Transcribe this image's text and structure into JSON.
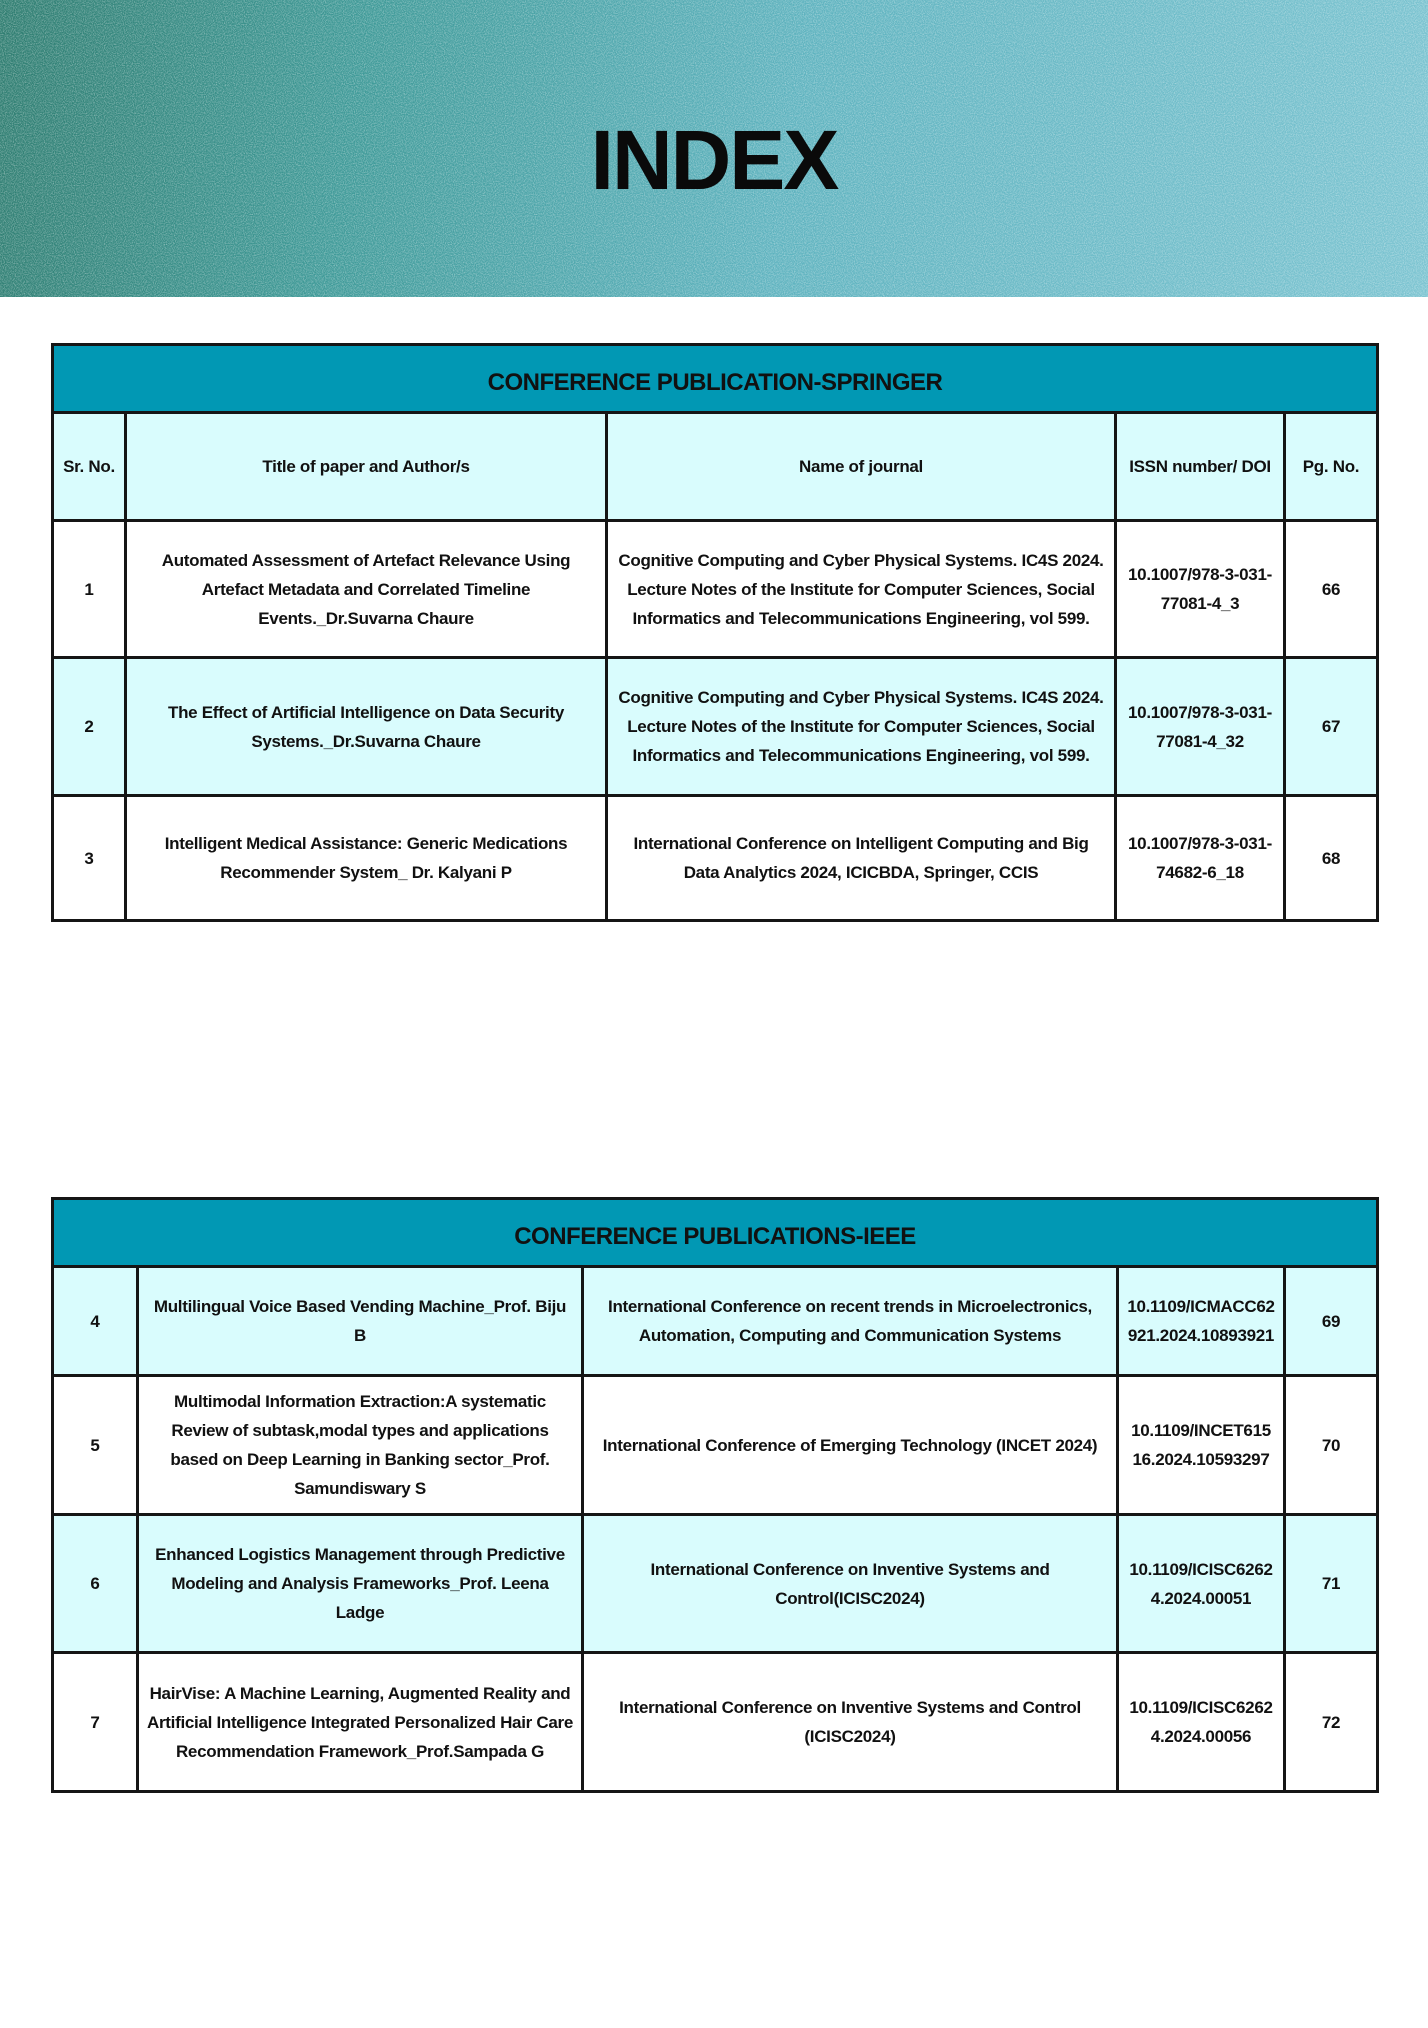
{
  "banner": {
    "title": "INDEX",
    "colors": {
      "left": "#2f7d70",
      "right": "#7cc4d1"
    }
  },
  "springer": {
    "title": "CONFERENCE PUBLICATION-SPRINGER",
    "headers": {
      "sr": "Sr. No.",
      "title": "Title of paper and Author/s",
      "journal": "Name of journal",
      "doi": "ISSN number/ DOI",
      "page": "Pg. No."
    },
    "rows": [
      {
        "sr": "1",
        "title": "Automated Assessment of Artefact Relevance Using Artefact Metadata and Correlated Timeline Events._Dr.Suvarna Chaure",
        "journal": "Cognitive Computing and Cyber Physical Systems. IC4S 2024. Lecture Notes of the Institute for Computer Sciences, Social Informatics and Telecommunications Engineering, vol 599.",
        "doi": "10.1007/978-3-031-77081-4_3",
        "page": "66"
      },
      {
        "sr": "2",
        "title": "The Effect of Artificial Intelligence on Data Security Systems._Dr.Suvarna Chaure",
        "journal": "Cognitive Computing and Cyber Physical Systems. IC4S 2024. Lecture Notes of the Institute for Computer Sciences, Social Informatics and Telecommunications Engineering, vol 599.",
        "doi": "10.1007/978-3-031-77081-4_32",
        "page": "67"
      },
      {
        "sr": "3",
        "title": "Intelligent Medical Assistance: Generic Medications Recommender System_ Dr. Kalyani P",
        "journal": "International Conference on Intelligent Computing and Big Data Analytics 2024, ICICBDA, Springer, CCIS",
        "doi": "10.1007/978-3-031-74682-6_18",
        "page": "68"
      }
    ]
  },
  "ieee": {
    "title": "CONFERENCE PUBLICATIONS-IEEE",
    "rows": [
      {
        "sr": "4",
        "title": "Multilingual Voice Based Vending Machine_Prof. Biju B",
        "journal": "International Conference on recent trends in Microelectronics, Automation, Computing and Communication Systems",
        "doi": "10.1109/ICMACC62921.2024.10893921",
        "page": "69"
      },
      {
        "sr": "5",
        "title": "Multimodal Information Extraction:A systematic Review of subtask,modal types and applications based on Deep Learning in Banking sector_Prof. Samundiswary S",
        "journal": "International Conference of Emerging Technology (INCET 2024)",
        "doi": "10.1109/INCET61516.2024.10593297",
        "page": "70"
      },
      {
        "sr": "6",
        "title": "Enhanced Logistics Management through Predictive Modeling and Analysis Frameworks_Prof. Leena Ladge",
        "journal": "International Conference on Inventive Systems and Control(ICISC2024)",
        "doi": "10.1109/ICISC62624.2024.00051",
        "page": "71"
      },
      {
        "sr": "7",
        "title": "HairVise: A Machine Learning, Augmented Reality and Artificial Intelligence Integrated Personalized Hair Care Recommendation Framework_Prof.Sampada G",
        "journal": "International Conference on Inventive Systems and Control (ICISC2024)",
        "doi": "10.1109/ICISC62624.2024.00056",
        "page": "72"
      }
    ]
  }
}
